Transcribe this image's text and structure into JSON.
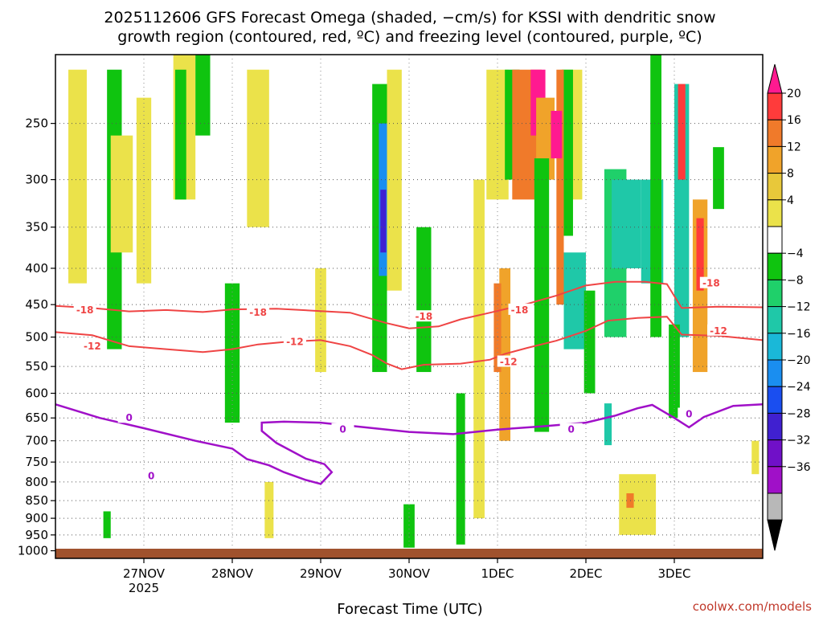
{
  "chart_data": {
    "type": "heatmap",
    "title": [
      "2025112606 GFS Forecast Omega (shaded, −cm/s) for KSSI with dendritic snow",
      "growth region (contoured, red, ºC) and freezing level (contoured, purple, ºC)"
    ],
    "xlabel": "Forecast Time (UTC)",
    "ylabel": "",
    "credit": "coolwx.com/models",
    "x_ticks": [
      {
        "label": "27NOV",
        "sub": "2025",
        "t": 24
      },
      {
        "label": "28NOV",
        "sub": "",
        "t": 48
      },
      {
        "label": "29NOV",
        "sub": "",
        "t": 72
      },
      {
        "label": "30NOV",
        "sub": "",
        "t": 96
      },
      {
        "label": "1DEC",
        "sub": "",
        "t": 120
      },
      {
        "label": "2DEC",
        "sub": "",
        "t": 144
      },
      {
        "label": "3DEC",
        "sub": "",
        "t": 168
      }
    ],
    "x_range_hours": [
      0,
      192
    ],
    "y_ticks": [
      250,
      300,
      350,
      400,
      450,
      500,
      550,
      600,
      650,
      700,
      750,
      800,
      850,
      900,
      950,
      1000
    ],
    "y_range_hPa": [
      200,
      1025
    ],
    "grid": true,
    "colorbar": {
      "ticks": [
        "20",
        "16",
        "12",
        "8",
        "4",
        "−4",
        "−8",
        "−12",
        "−16",
        "−20",
        "−24",
        "−28",
        "−32",
        "−36"
      ],
      "colors": [
        "#ff1a90",
        "#ff3b3b",
        "#f07a2a",
        "#f0a32a",
        "#e8c83a",
        "#ebe24a",
        "#ffffff",
        "#0fc40f",
        "#1fd06a",
        "#1fc8a8",
        "#1ab8d8",
        "#1a8ef0",
        "#1a4ef0",
        "#4020d0",
        "#7010c8",
        "#a010c8",
        "#b8b8b8",
        "#000000"
      ]
    },
    "contours": [
      {
        "label": "-18",
        "color": "#ef4444",
        "points": [
          [
            0,
            452
          ],
          [
            10,
            455
          ],
          [
            20,
            460
          ],
          [
            30,
            458
          ],
          [
            40,
            461
          ],
          [
            48,
            457
          ],
          [
            60,
            456
          ],
          [
            70,
            459
          ],
          [
            80,
            462
          ],
          [
            85,
            470
          ],
          [
            90,
            478
          ],
          [
            96,
            486
          ],
          [
            104,
            483
          ],
          [
            110,
            472
          ],
          [
            118,
            462
          ],
          [
            128,
            449
          ],
          [
            136,
            437
          ],
          [
            144,
            423
          ],
          [
            152,
            418
          ],
          [
            160,
            418
          ],
          [
            166,
            421
          ],
          [
            170,
            455
          ],
          [
            180,
            453
          ],
          [
            192,
            454
          ]
        ],
        "labels": [
          [
            8,
            458
          ],
          [
            55,
            462
          ],
          [
            100,
            468
          ],
          [
            126,
            458
          ],
          [
            178,
            420
          ]
        ]
      },
      {
        "label": "-12",
        "color": "#ef4444",
        "points": [
          [
            0,
            492
          ],
          [
            10,
            497
          ],
          [
            20,
            515
          ],
          [
            30,
            520
          ],
          [
            40,
            525
          ],
          [
            48,
            520
          ],
          [
            55,
            512
          ],
          [
            62,
            508
          ],
          [
            72,
            505
          ],
          [
            80,
            515
          ],
          [
            86,
            530
          ],
          [
            90,
            545
          ],
          [
            94,
            555
          ],
          [
            100,
            547
          ],
          [
            110,
            545
          ],
          [
            118,
            538
          ],
          [
            122,
            528
          ],
          [
            128,
            518
          ],
          [
            136,
            506
          ],
          [
            144,
            490
          ],
          [
            150,
            474
          ],
          [
            158,
            470
          ],
          [
            166,
            468
          ],
          [
            170,
            496
          ],
          [
            180,
            498
          ],
          [
            192,
            505
          ]
        ],
        "labels": [
          [
            10,
            515
          ],
          [
            65,
            508
          ],
          [
            123,
            542
          ],
          [
            180,
            490
          ]
        ]
      },
      {
        "label": "0",
        "color": "#a010c8",
        "points": [
          [
            0,
            622
          ],
          [
            12,
            650
          ],
          [
            24,
            672
          ],
          [
            38,
            700
          ],
          [
            48,
            718
          ],
          [
            52,
            743
          ],
          [
            58,
            758
          ],
          [
            62,
            775
          ],
          [
            68,
            795
          ],
          [
            72,
            805
          ],
          [
            75,
            775
          ],
          [
            73,
            755
          ],
          [
            68,
            742
          ],
          [
            60,
            705
          ],
          [
            56,
            678
          ],
          [
            56,
            660
          ],
          [
            62,
            658
          ],
          [
            72,
            660
          ],
          [
            84,
            670
          ],
          [
            96,
            680
          ],
          [
            108,
            685
          ],
          [
            120,
            675
          ],
          [
            132,
            668
          ],
          [
            144,
            660
          ],
          [
            152,
            645
          ],
          [
            158,
            630
          ],
          [
            162,
            623
          ],
          [
            168,
            650
          ],
          [
            172,
            670
          ],
          [
            176,
            648
          ],
          [
            184,
            625
          ],
          [
            192,
            622
          ]
        ],
        "labels": [
          [
            26,
            785
          ],
          [
            78,
            675
          ],
          [
            140,
            675
          ],
          [
            172,
            642
          ],
          [
            20,
            650
          ]
        ]
      }
    ]
  }
}
